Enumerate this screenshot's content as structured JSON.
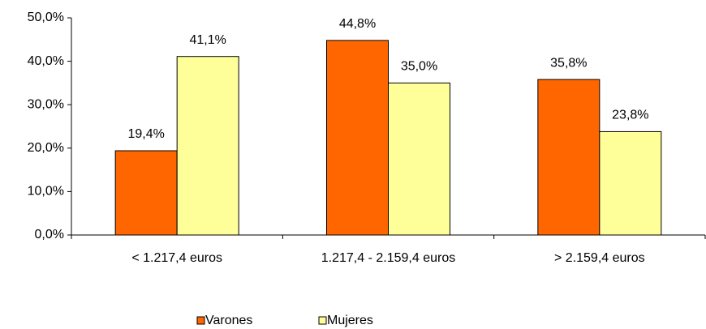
{
  "chart_data": {
    "type": "bar",
    "categories": [
      "< 1.217,4 euros",
      "1.217,4 - 2.159,4 euros",
      "> 2.159,4 euros"
    ],
    "series": [
      {
        "name": "Varones",
        "color": "#ff6600",
        "values": [
          19.4,
          44.8,
          35.8
        ],
        "value_labels": [
          "19,4%",
          "44,8%",
          "35,8%"
        ]
      },
      {
        "name": "Mujeres",
        "color": "#ffff99",
        "values": [
          41.1,
          35.0,
          23.8
        ],
        "value_labels": [
          "41,1%",
          "35,0%",
          "23,8%"
        ]
      }
    ],
    "ylim": [
      0,
      50
    ],
    "yticks": [
      {
        "value": 0,
        "label": "0,0%"
      },
      {
        "value": 10,
        "label": "10,0%"
      },
      {
        "value": 20,
        "label": "20,0%"
      },
      {
        "value": 30,
        "label": "30,0%"
      },
      {
        "value": 40,
        "label": "40,0%"
      },
      {
        "value": 50,
        "label": "50,0%"
      }
    ],
    "grid": false,
    "legend": "bottom"
  }
}
